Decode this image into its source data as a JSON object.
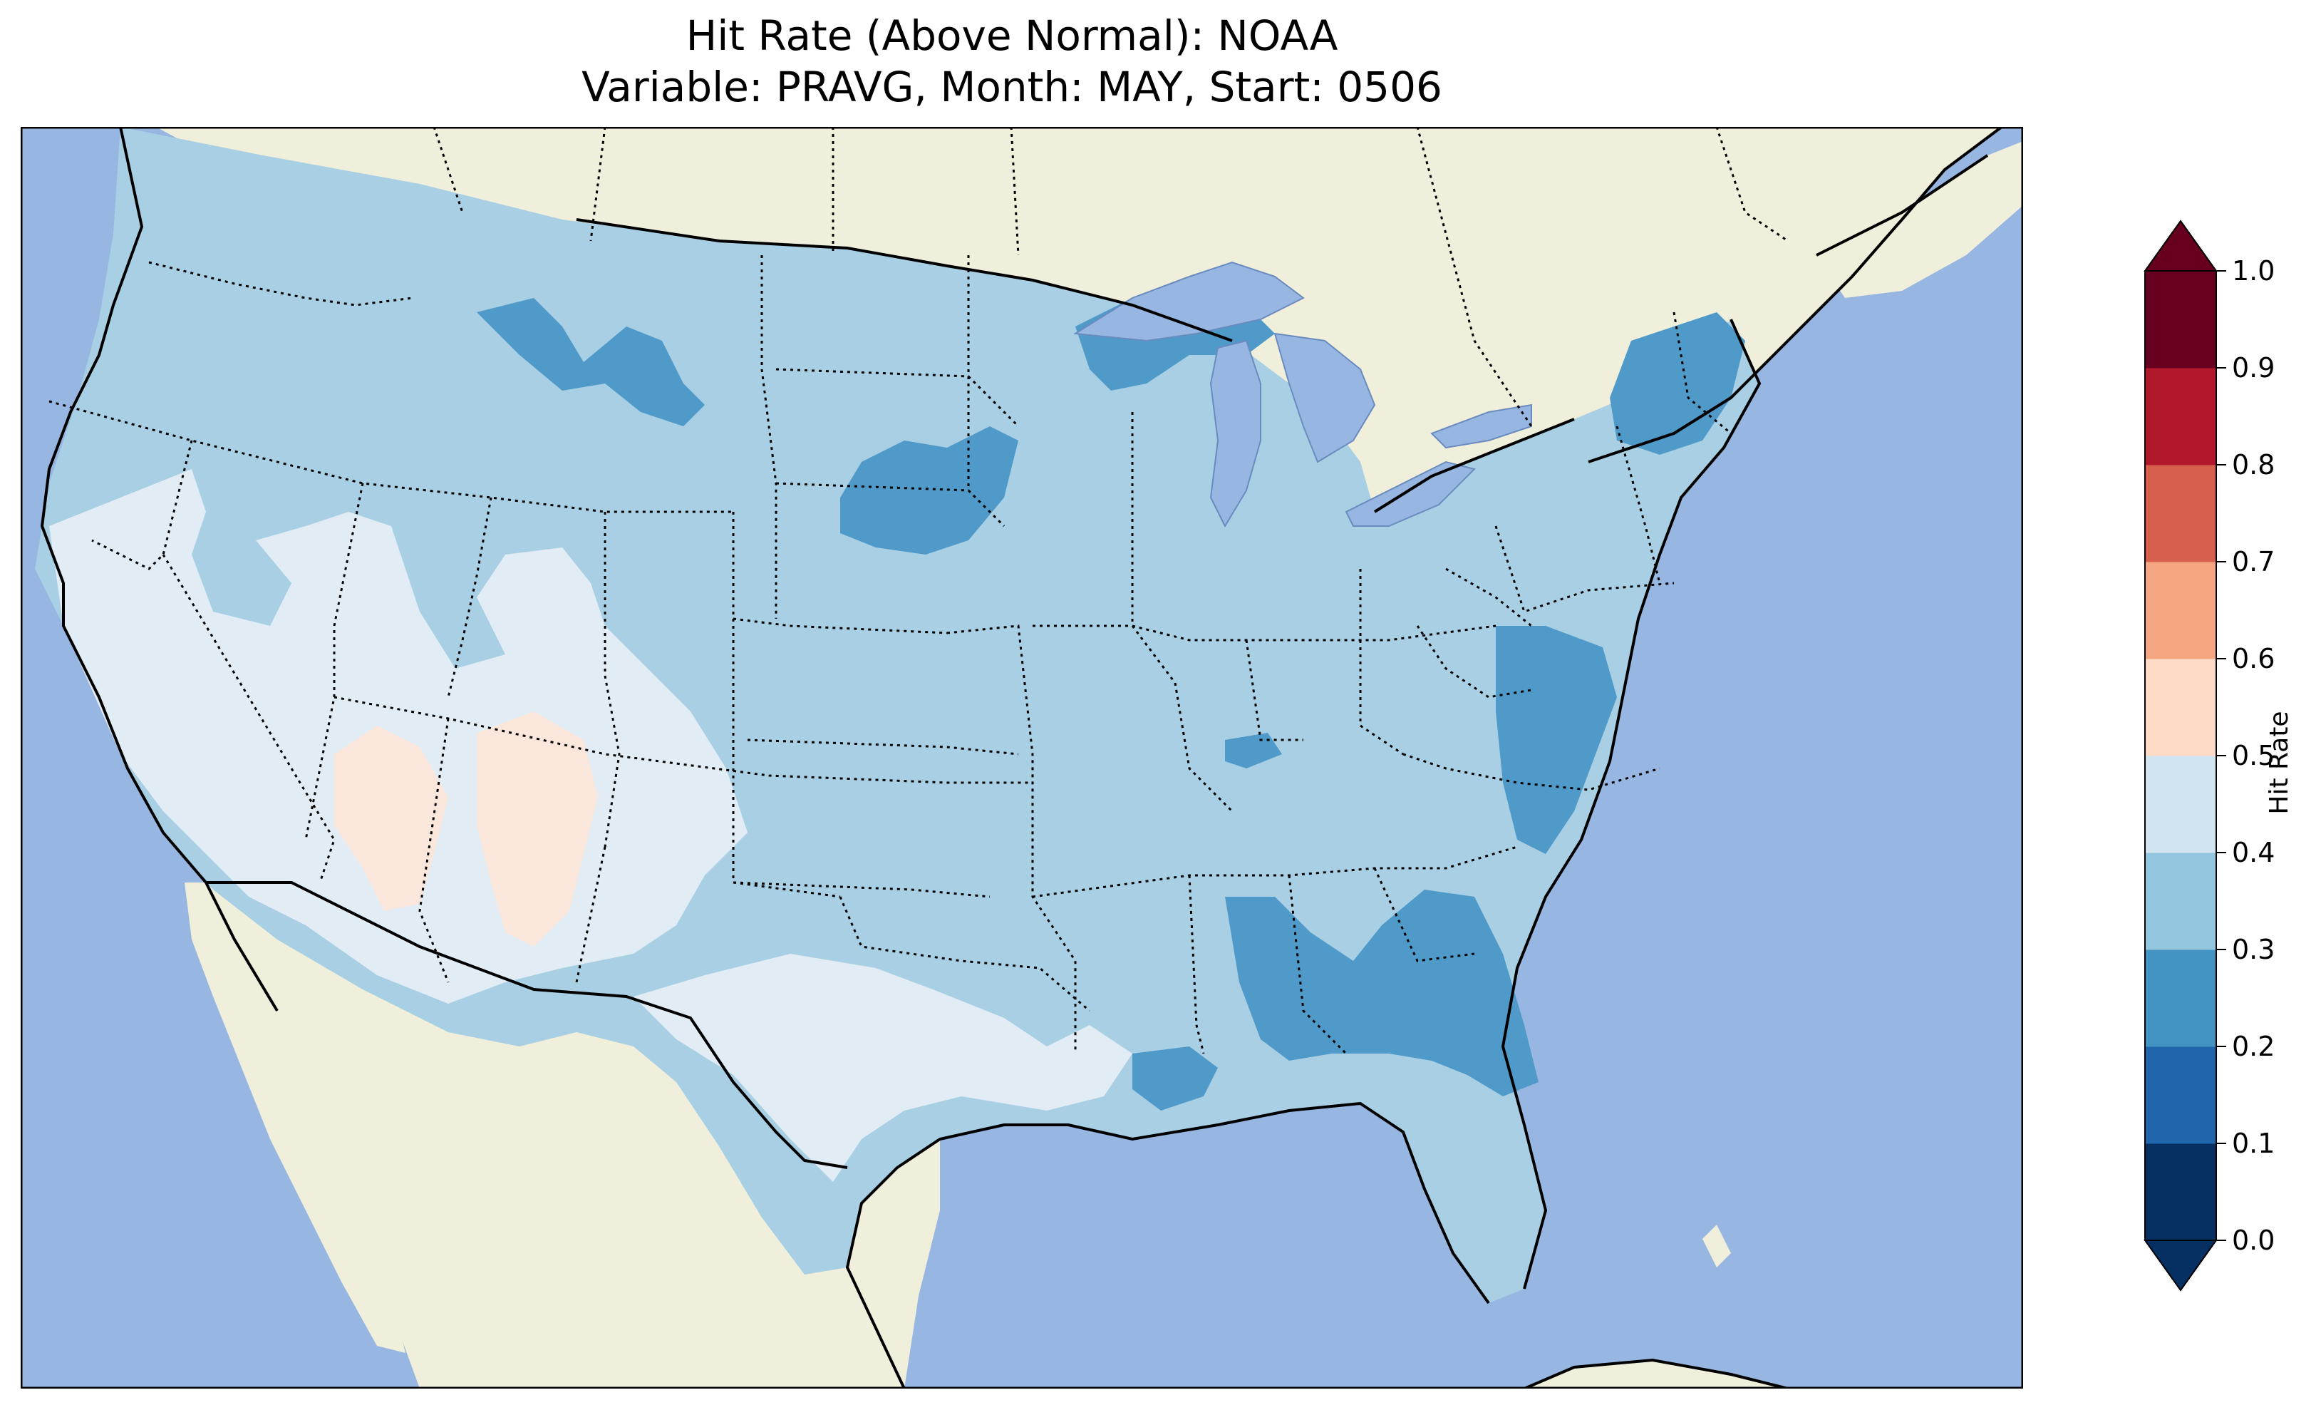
{
  "title": {
    "line1": "Hit Rate (Above Normal): NOAA",
    "line2": "Variable: PRAVG, Month: MAY, Start: 0506"
  },
  "colors": {
    "ocean": "#97b6e1",
    "land": "#efefdb",
    "lake": "#97b6e1",
    "coast": "#000000"
  },
  "colorbar": {
    "label": "Hit Rate",
    "ticks": [
      "0.0",
      "0.1",
      "0.2",
      "0.3",
      "0.4",
      "0.5",
      "0.6",
      "0.7",
      "0.8",
      "0.9",
      "1.0"
    ],
    "levels": [
      0.0,
      0.1,
      0.2,
      0.3,
      0.4,
      0.5,
      0.6,
      0.7,
      0.8,
      0.9,
      1.0
    ],
    "colors": [
      "#053061",
      "#2166ac",
      "#4393c3",
      "#92c5de",
      "#d1e5f0",
      "#fddbc7",
      "#f4a582",
      "#d6604d",
      "#b2182b",
      "#67001f"
    ],
    "extend_under_color": "#053061",
    "extend_over_color": "#67001f"
  },
  "field_classes": [
    {
      "range": "0.2-0.3",
      "color": "#4f9ac9"
    },
    {
      "range": "0.3-0.4",
      "color": "#a8cfe3"
    },
    {
      "range": "0.4-0.5",
      "color": "#e1ecf4"
    },
    {
      "range": "0.5-0.6",
      "color": "#fbe6dc"
    }
  ]
}
